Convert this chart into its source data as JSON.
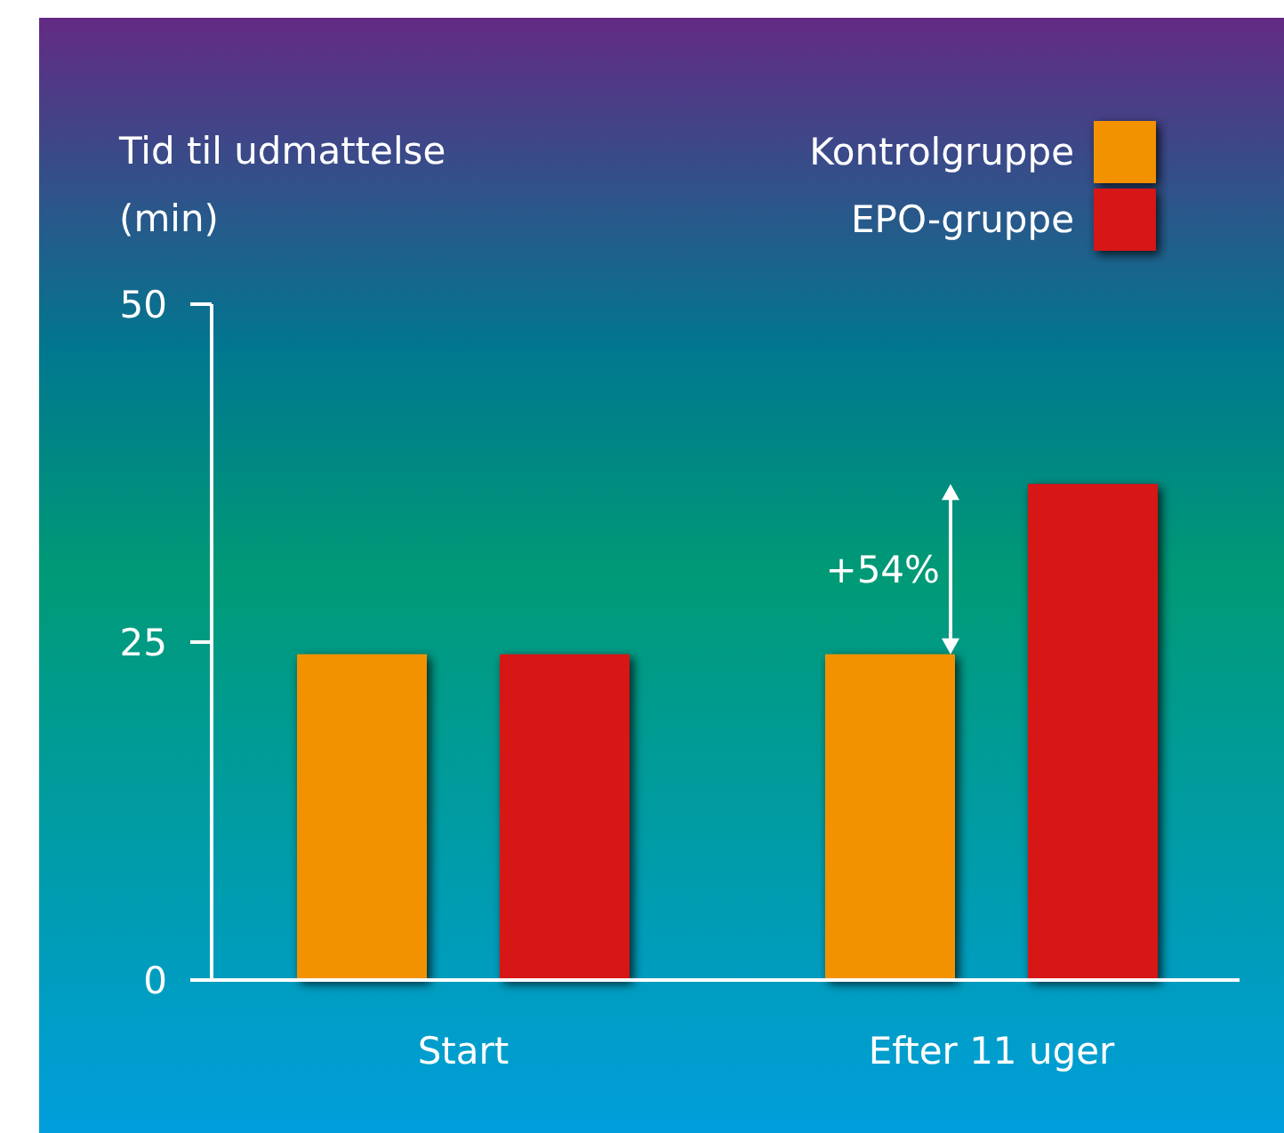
{
  "chart_data": {
    "type": "bar",
    "ylabel": "Tid til udmattelse (min)",
    "categories": [
      "Start",
      "Efter 11 uger"
    ],
    "series": [
      {
        "name": "Kontrolgruppe",
        "color": "#f39200",
        "values": [
          24.1,
          24.1
        ]
      },
      {
        "name": "EPO-gruppe",
        "color": "#d71418",
        "values": [
          24.1,
          36.7
        ]
      }
    ],
    "ylim": [
      0,
      50
    ],
    "yticks": [
      0,
      25,
      50
    ],
    "grid": false,
    "legend": "top right",
    "annotations": [
      "+54%"
    ]
  }
}
